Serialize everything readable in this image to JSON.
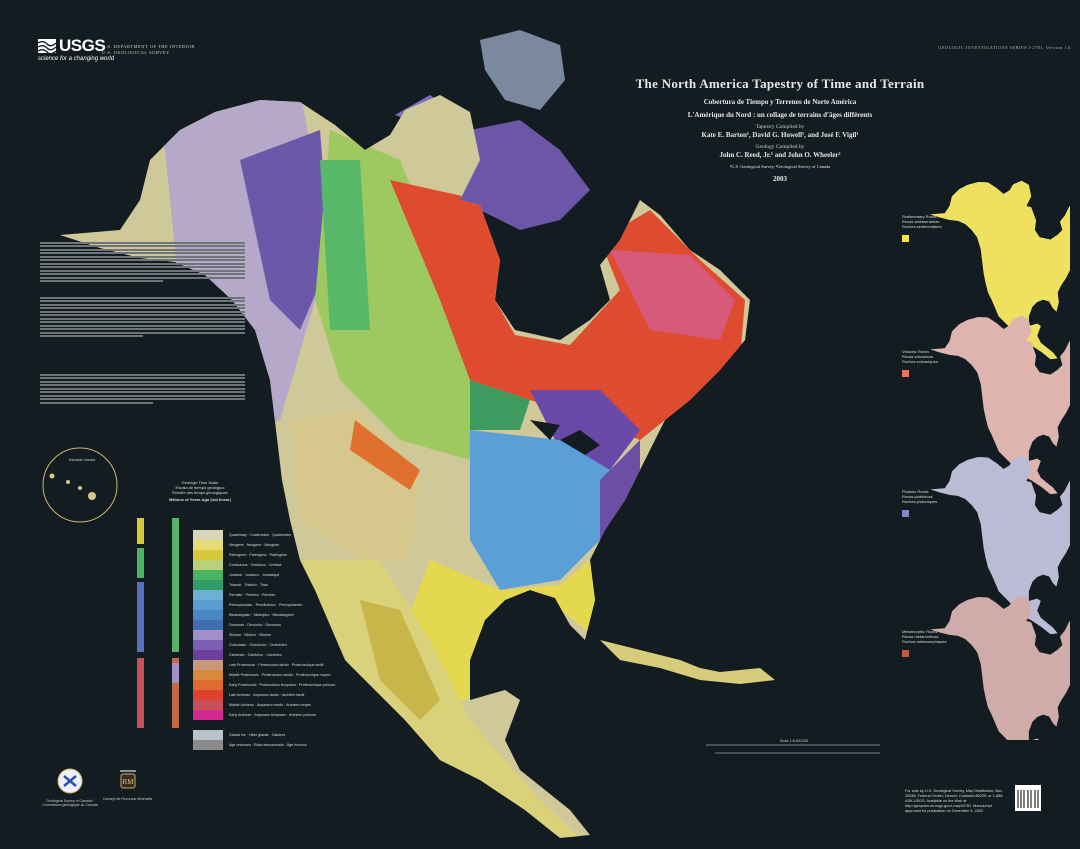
{
  "header": {
    "logo_text": "USGS",
    "logo_tagline": "science for a changing world",
    "department": "U.S. DEPARTMENT OF THE INTERIOR",
    "survey": "U.S. GEOLOGICAL SURVEY",
    "series": "GEOLOGIC INVESTIGATIONS SERIES I-2781, Version 1.0"
  },
  "title_block": {
    "title": "The North America Tapestry of Time and Terrain",
    "title_es": "Cobertura de Tiempo y Terrenos de Norte América",
    "title_fr": "L'Amérique du Nord : un collage de terrains d'âges différents",
    "tapestry_label": "Tapestry Compiled by",
    "tapestry_authors": "Kate E. Barton¹, David G. Howell¹, and José F. Vigil¹",
    "geology_label": "Geology Compiled by",
    "geology_authors": "John C. Reed, Jr.¹ and John O. Wheeler²",
    "affiliations": "¹U.S. Geological Survey, ²Geological Survey of Canada",
    "year": "2003"
  },
  "insets": [
    {
      "label": "Sedimentary Rocks",
      "label_es": "Rocas sedimentarias",
      "label_fr": "Roches sédimentaires",
      "color": "#f3e24a"
    },
    {
      "label": "Volcanic Rocks",
      "label_es": "Rocas volcánicas",
      "label_fr": "Roches volcaniques",
      "color": "#e8735a"
    },
    {
      "label": "Plutonic Rocks",
      "label_es": "Rocas plutónicas",
      "label_fr": "Roches plutoniques",
      "color": "#8a86c8"
    },
    {
      "label": "Metamorphic Rocks",
      "label_es": "Rocas metamórficas",
      "label_fr": "Roches métamorphiques",
      "color": "#c0584a"
    }
  ],
  "hawaii_label": "Hawaiian Islands",
  "legend": {
    "title": "Geologic Time Scale",
    "title_es": "Escala de tiempo geológico",
    "title_fr": "Échelle des temps géologiques",
    "subtitle": "Millions of Years Ago (not linear)",
    "entries": [
      {
        "label": "Quaternary · Cuaternario · Quaternaire",
        "color": "#d9d6b8"
      },
      {
        "label": "Neogene · Neógeno · Néogène",
        "color": "#e6dc7a"
      },
      {
        "label": "Paleogene · Paleógeno · Paléogène",
        "color": "#d8c93a"
      },
      {
        "label": "Cretaceous · Cretácico · Crétacé",
        "color": "#b7d27a"
      },
      {
        "label": "Jurassic · Jurásico · Jurassique",
        "color": "#49b463"
      },
      {
        "label": "Triassic · Triásico · Trias",
        "color": "#2f9c6a"
      },
      {
        "label": "Permian · Pérmico · Permien",
        "color": "#6fb1d6"
      },
      {
        "label": "Pennsylvanian · Pensilvánico · Pennsylvanien",
        "color": "#5a9bd0"
      },
      {
        "label": "Mississippian · Misisípico · Mississippien",
        "color": "#4a86c0"
      },
      {
        "label": "Devonian · Devónico · Dévonien",
        "color": "#3f6fb0"
      },
      {
        "label": "Silurian · Silúrico · Silurien",
        "color": "#a08fc8"
      },
      {
        "label": "Ordovician · Ordovícico · Ordovicien",
        "color": "#7a5fb4"
      },
      {
        "label": "Cambrian · Cámbrico · Cambrien",
        "color": "#6a3f9e"
      },
      {
        "label": "Late Proterozoic · Proterozoico tardío · Protérozoïque tardif",
        "color": "#c89a78"
      },
      {
        "label": "Middle Proterozoic · Proterozoico medio · Protérozoïque moyen",
        "color": "#d88a3a"
      },
      {
        "label": "Early Proterozoic · Proterozoico temprano · Protérozoïque précoce",
        "color": "#e06a30"
      },
      {
        "label": "Late Archean · Arqueano tardío · Archéen tardif",
        "color": "#e0402e"
      },
      {
        "label": "Middle Archean · Arqueano medio · Archéen moyen",
        "color": "#c8505a"
      },
      {
        "label": "Early Archean · Arqueano temprano · Archéen précoce",
        "color": "#d02a90"
      },
      {
        "label": "Glacial Ice · Hielo glaciar · Glaciers",
        "color": "#b8c4c8"
      },
      {
        "label": "Age unknown · Edad desconocida · Âge inconnu",
        "color": "#8a8a8a"
      }
    ]
  },
  "logos": {
    "gsc": "Geological Survey of Canada / Commission géologique du Canada",
    "crm": "Consejo de Recursos Minerales"
  },
  "footer": {
    "sales_note": "For sale by U.S. Geological Survey, Map Distribution, Box 25286, Federal Center, Denver, Colorado 80225, or 1-888-ASK-USGS. Available on the Web at http://geopubs.wr.usgs.gov/i-map/i2781. Manuscript approved for publication on December 4, 2002",
    "scale": "Scale 1:8,000,000"
  },
  "colors": {
    "background": "#131c21"
  }
}
